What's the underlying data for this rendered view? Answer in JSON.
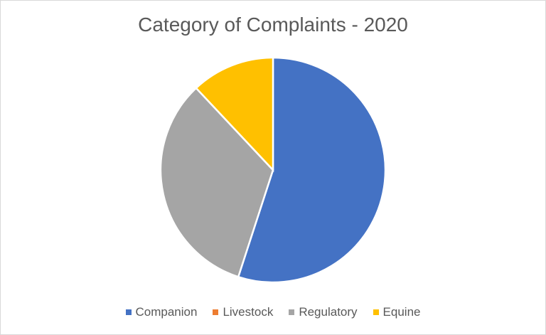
{
  "chart_data": {
    "type": "pie",
    "title": "Category of Complaints - 2020",
    "categories": [
      "Companion",
      "Livestock",
      "Regulatory",
      "Equine"
    ],
    "values": [
      55,
      0,
      33,
      12
    ],
    "colors": [
      "#4472c4",
      "#ed7d31",
      "#a5a5a5",
      "#ffc000"
    ],
    "legend_position": "bottom",
    "start_angle": "top, clockwise"
  }
}
